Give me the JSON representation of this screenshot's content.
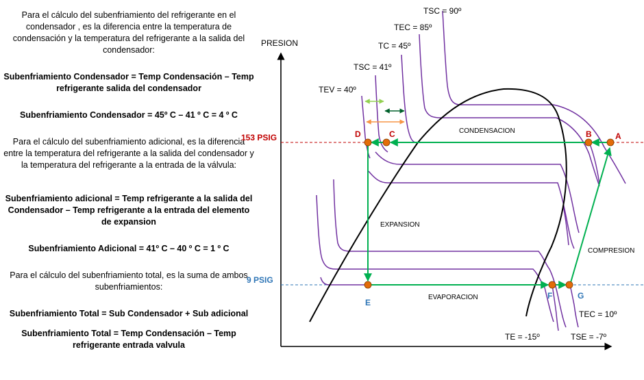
{
  "text_blocks": [
    "Para el cálculo del subenfriamiento del refrigerante en el condensador , es la diferencia entre la temperatura de condensación y la temperatura del refrigerante a la salida del condensador:",
    "Subenfriamiento Condensador  = Temp Condensación – Temp refrigerante salida del condensador",
    "Subenfriamiento Condensador  = 45º C – 41 º C = 4 º C",
    "Para el cálculo del subenfriamiento adicional, es la diferencia entre la temperatura del refrigerante a la salida del condensador y la temperatura del refrigerante a la entrada de la válvula:",
    "Subenfriamiento adicional = Temp refrigerante a la salida del Condensador – Temp refrigerante a la entrada  del elemento de expansion",
    "Subenfriamiento Adicional = 41º C – 40 º C = 1 º C",
    "Para el cálculo del subenfriamiento  total, es la suma de ambos subenfriamientos:",
    "Subenfriamiento Total = Sub Condensador  + Sub adicional",
    "Subenfriamiento Total = Temp Condensación  – Temp refrigerante entrada valvula"
  ],
  "axis": {
    "y_label": "PRESION"
  },
  "pressure_lines": {
    "high": "153 PSIG",
    "low": "9 PSIG"
  },
  "temperature_labels": {
    "tsc_high": "TSC = 90º",
    "tec_high": "TEC = 85º",
    "tc": "TC = 45º",
    "tsc_low": "TSC = 41º",
    "tev": "TEV = 40º",
    "tec_low": "TEC = 10º",
    "te": "TE = -15º",
    "tse": "TSE = -7º"
  },
  "regions": {
    "condensacion": "CONDENSACION",
    "expansion": "EXPANSION",
    "compresion": "COMPRESION",
    "evaporacion": "EVAPORACION"
  },
  "points": {
    "A": "A",
    "B": "B",
    "C": "C",
    "D": "D",
    "E": "E",
    "F": "F",
    "G": "G"
  },
  "colors": {
    "isotherm": "#7030a0",
    "cycle": "#00b050",
    "high_pressure": "#c00000",
    "low_pressure": "#2e75b6",
    "point_fill": "#e36c09",
    "point_label_red": "#c00000",
    "point_label_blue": "#2e75b6",
    "arrow_light_green": "#92d050",
    "arrow_dark_green": "#00602b",
    "arrow_orange": "#f79646"
  }
}
